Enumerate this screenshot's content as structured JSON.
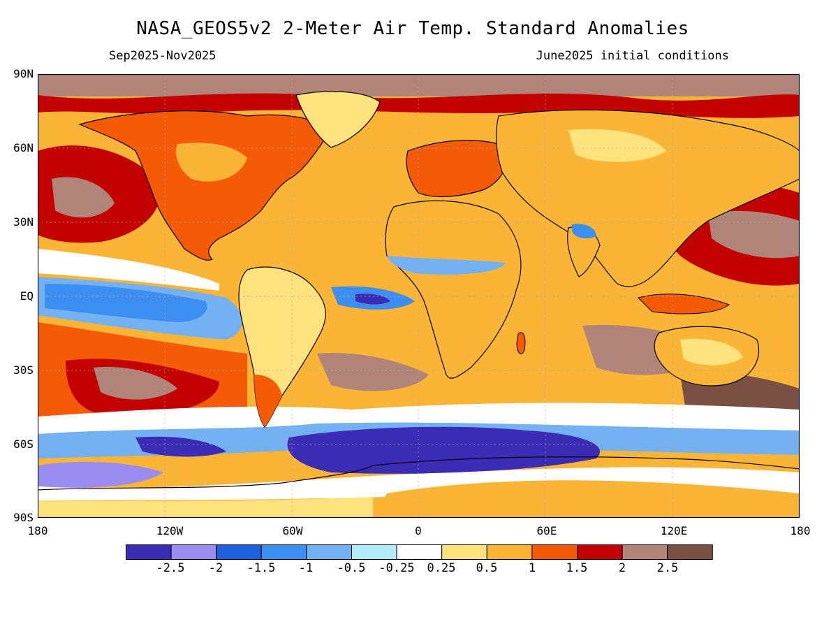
{
  "header": {
    "title": "NASA_GEOS5v2 2-Meter Air Temp. Standard Anomalies",
    "period": "Sep2025-Nov2025",
    "init": "June2025 initial conditions"
  },
  "axes": {
    "lat_labels": [
      "90N",
      "60N",
      "30N",
      "EQ",
      "30S",
      "60S",
      "90S"
    ],
    "lat_values": [
      90,
      60,
      30,
      0,
      -30,
      -60,
      -90
    ],
    "lon_labels": [
      "180",
      "120W",
      "60W",
      "0",
      "60E",
      "120E",
      "180"
    ],
    "lon_values": [
      -180,
      -120,
      -60,
      0,
      60,
      120,
      180
    ]
  },
  "legend": {
    "tick_labels": [
      "-2.5",
      "-2",
      "-1.5",
      "-1",
      "-0.5",
      "-0.25",
      "0.25",
      "0.5",
      "1",
      "1.5",
      "2",
      "2.5"
    ],
    "colors": [
      "#3a2cb5",
      "#9b8cf2",
      "#1e60db",
      "#3c8ff0",
      "#74b1f3",
      "#b2ecf7",
      "#ffffff",
      "#fde27d",
      "#fbb536",
      "#f55a07",
      "#c30101",
      "#b08478",
      "#7a5044"
    ]
  },
  "map": {
    "ocean_color": "#fbb536",
    "land_fill": "none",
    "coastline_color": "#000000",
    "regions": [
      {
        "name": "arctic",
        "color": "#b08478"
      },
      {
        "name": "tropical-pacific",
        "color": "#3c8ff0"
      },
      {
        "name": "southern-ocean",
        "color": "#3a2cb5"
      },
      {
        "name": "antarctica",
        "color": "#fbb536"
      },
      {
        "name": "north-pacific",
        "color": "#c30101"
      },
      {
        "name": "south-pacific",
        "color": "#f55a07"
      }
    ]
  }
}
